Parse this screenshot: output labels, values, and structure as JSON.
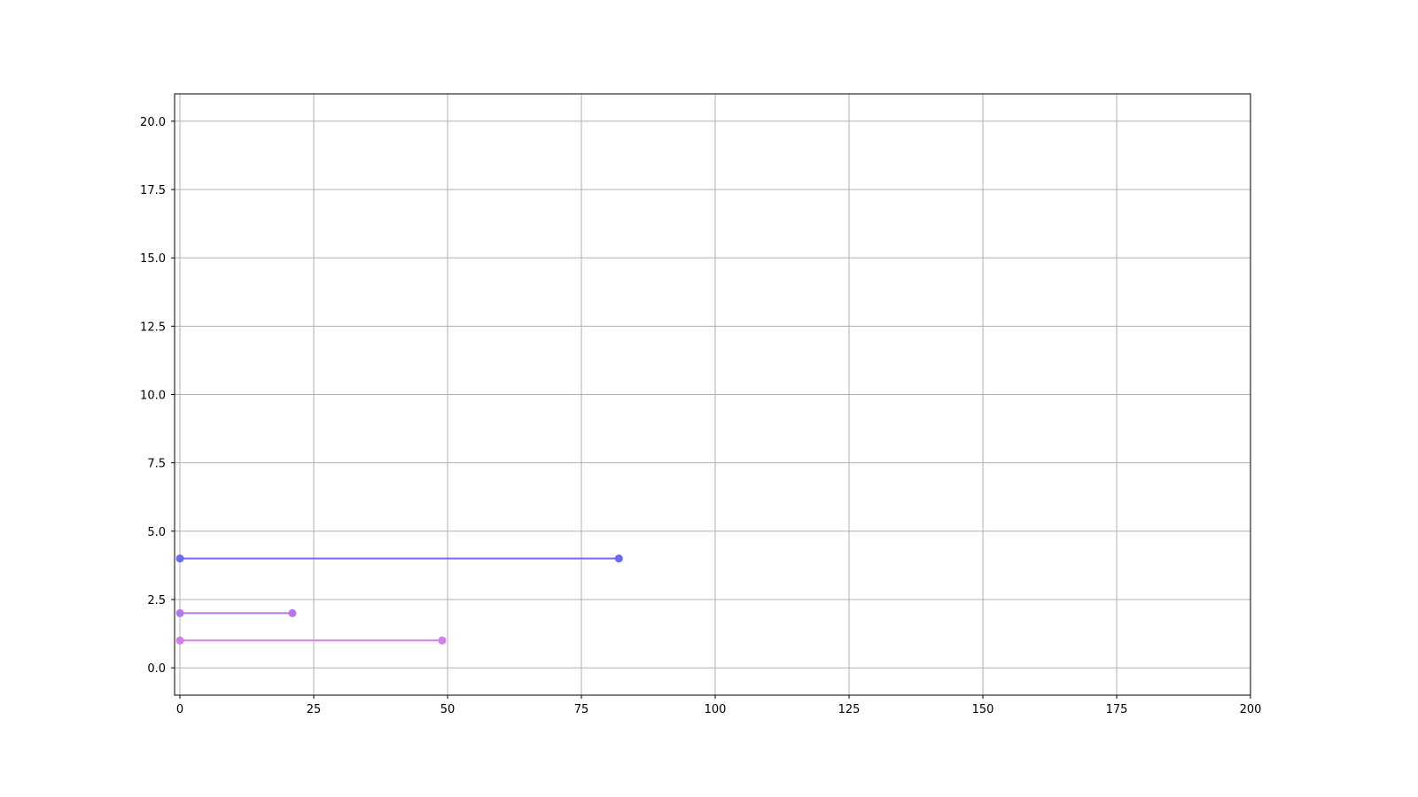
{
  "chart_data": {
    "type": "line",
    "title": "",
    "xlabel": "",
    "ylabel": "",
    "xlim": [
      -1,
      200
    ],
    "ylim": [
      -1,
      21
    ],
    "grid": true,
    "xticks": [
      "0",
      "25",
      "50",
      "75",
      "100",
      "125",
      "150",
      "175",
      "200"
    ],
    "yticks": [
      "0.0",
      "2.5",
      "5.0",
      "7.5",
      "10.0",
      "12.5",
      "15.0",
      "17.5",
      "20.0"
    ],
    "series": [
      {
        "x": [
          0,
          82
        ],
        "y": [
          4,
          4
        ],
        "color": "#6b6bef",
        "marker": "circle"
      },
      {
        "x": [
          0,
          21
        ],
        "y": [
          2,
          2
        ],
        "color": "#b476ea",
        "marker": "circle"
      },
      {
        "x": [
          0,
          49
        ],
        "y": [
          1,
          1
        ],
        "color": "#d47bee",
        "marker": "circle"
      }
    ]
  }
}
